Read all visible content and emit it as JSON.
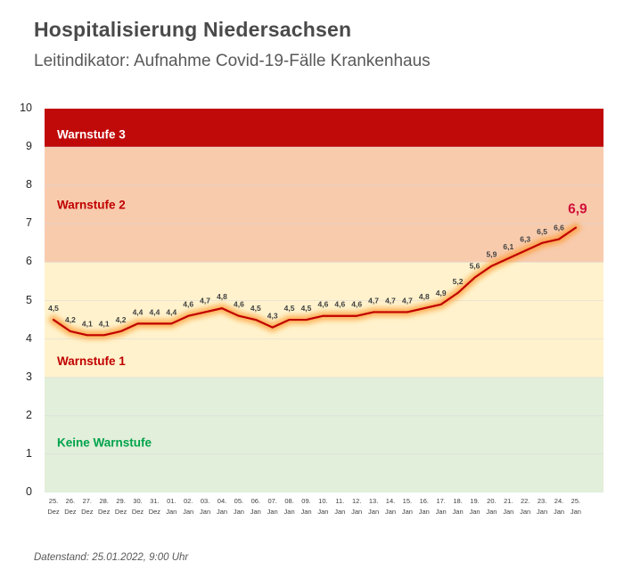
{
  "header": {
    "title": "Hospitalisierung Niedersachsen",
    "subtitle": "Leitindikator: Aufnahme Covid-19-Fälle Krankenhaus"
  },
  "footer": {
    "datenstand": "Datenstand: 25.01.2022, 9:00 Uhr"
  },
  "chart_data": {
    "type": "line",
    "title": "Hospitalisierung Niedersachsen",
    "subtitle": "Leitindikator: Aufnahme Covid-19-Fälle Krankenhaus",
    "ylim": [
      0,
      10
    ],
    "yticks": [
      0,
      1,
      2,
      3,
      4,
      5,
      6,
      7,
      8,
      9,
      10
    ],
    "grid": true,
    "legend": "none",
    "categories": [
      {
        "day": "25.",
        "month": "Dez"
      },
      {
        "day": "26.",
        "month": "Dez"
      },
      {
        "day": "27.",
        "month": "Dez"
      },
      {
        "day": "28.",
        "month": "Dez"
      },
      {
        "day": "29.",
        "month": "Dez"
      },
      {
        "day": "30.",
        "month": "Dez"
      },
      {
        "day": "31.",
        "month": "Dez"
      },
      {
        "day": "01.",
        "month": "Jan"
      },
      {
        "day": "02.",
        "month": "Jan"
      },
      {
        "day": "03.",
        "month": "Jan"
      },
      {
        "day": "04.",
        "month": "Jan"
      },
      {
        "day": "05.",
        "month": "Jan"
      },
      {
        "day": "06.",
        "month": "Jan"
      },
      {
        "day": "07.",
        "month": "Jan"
      },
      {
        "day": "08.",
        "month": "Jan"
      },
      {
        "day": "09.",
        "month": "Jan"
      },
      {
        "day": "10.",
        "month": "Jan"
      },
      {
        "day": "11.",
        "month": "Jan"
      },
      {
        "day": "12.",
        "month": "Jan"
      },
      {
        "day": "13.",
        "month": "Jan"
      },
      {
        "day": "14.",
        "month": "Jan"
      },
      {
        "day": "15.",
        "month": "Jan"
      },
      {
        "day": "16.",
        "month": "Jan"
      },
      {
        "day": "17.",
        "month": "Jan"
      },
      {
        "day": "18.",
        "month": "Jan"
      },
      {
        "day": "19.",
        "month": "Jan"
      },
      {
        "day": "20.",
        "month": "Jan"
      },
      {
        "day": "21.",
        "month": "Jan"
      },
      {
        "day": "22.",
        "month": "Jan"
      },
      {
        "day": "23.",
        "month": "Jan"
      },
      {
        "day": "24.",
        "month": "Jan"
      },
      {
        "day": "25.",
        "month": "Jan"
      }
    ],
    "values": [
      4.5,
      4.2,
      4.1,
      4.1,
      4.2,
      4.4,
      4.4,
      4.4,
      4.6,
      4.7,
      4.8,
      4.6,
      4.5,
      4.3,
      4.5,
      4.5,
      4.6,
      4.6,
      4.6,
      4.7,
      4.7,
      4.7,
      4.8,
      4.9,
      5.2,
      5.6,
      5.9,
      6.1,
      6.3,
      6.5,
      6.6,
      6.9
    ],
    "value_labels": [
      "4,5",
      "4,2",
      "4,1",
      "4,1",
      "4,2",
      "4,4",
      "4,4",
      "4,4",
      "4,6",
      "4,7",
      "4,8",
      "4,6",
      "4,5",
      "4,3",
      "4,5",
      "4,5",
      "4,6",
      "4,6",
      "4,6",
      "4,7",
      "4,7",
      "4,7",
      "4,8",
      "4,9",
      "5,2",
      "5,6",
      "5,9",
      "6,1",
      "6,3",
      "6,5",
      "6,6",
      "6,9"
    ],
    "bands": [
      {
        "label": "Warnstufe 3",
        "from": 9,
        "to": 10,
        "fill": "#c00a0a",
        "label_color": "#ffffff",
        "label_y": 9.33
      },
      {
        "label": "Warnstufe 2",
        "from": 6,
        "to": 9,
        "fill": "#f8cbad",
        "label_color": "#c00000",
        "label_y": 7.5
      },
      {
        "label": "Warnstufe 1",
        "from": 3,
        "to": 6,
        "fill": "#fff2cc",
        "label_color": "#c00000",
        "label_y": 3.42
      },
      {
        "label": "Keine Warnstufe",
        "from": 0,
        "to": 3,
        "fill": "#e2efda",
        "label_color": "#00a34c",
        "label_y": 1.3
      }
    ],
    "line_color": "#c00000",
    "glow_color": "#ff9020",
    "gridline_color": "#d9d9d9",
    "label_color": "#3f3f3f",
    "final_label_color": "#d0103a"
  }
}
